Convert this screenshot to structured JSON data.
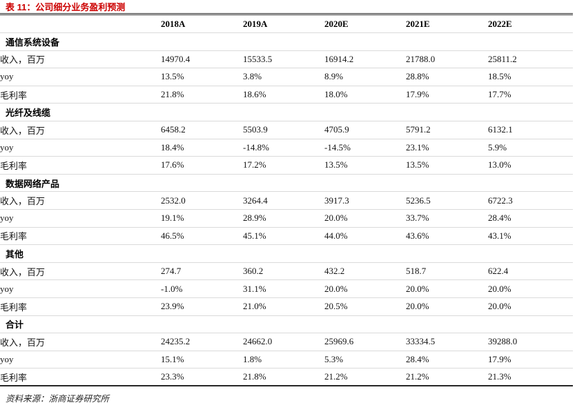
{
  "title": "表 11：公司细分业务盈利预测",
  "source": "资料来源：浙商证券研究所",
  "colors": {
    "title_red": "#cc0000",
    "heavy_rule": "#262626",
    "light_rule": "#dadada",
    "background": "#ffffff"
  },
  "table": {
    "columns": [
      "",
      "2018A",
      "2019A",
      "2020E",
      "2021E",
      "2022E"
    ],
    "sections": [
      {
        "name": "通信系统设备",
        "rows": [
          {
            "label": "收入，百万",
            "values": [
              "14970.4",
              "15533.5",
              "16914.2",
              "21788.0",
              "25811.2"
            ]
          },
          {
            "label": "yoy",
            "values": [
              "13.5%",
              "3.8%",
              "8.9%",
              "28.8%",
              "18.5%"
            ]
          },
          {
            "label": "毛利率",
            "values": [
              "21.8%",
              "18.6%",
              "18.0%",
              "17.9%",
              "17.7%"
            ]
          }
        ]
      },
      {
        "name": "光纤及线缆",
        "rows": [
          {
            "label": "收入，百万",
            "values": [
              "6458.2",
              "5503.9",
              "4705.9",
              "5791.2",
              "6132.1"
            ]
          },
          {
            "label": "yoy",
            "values": [
              "18.4%",
              "-14.8%",
              "-14.5%",
              "23.1%",
              "5.9%"
            ]
          },
          {
            "label": "毛利率",
            "values": [
              "17.6%",
              "17.2%",
              "13.5%",
              "13.5%",
              "13.0%"
            ]
          }
        ]
      },
      {
        "name": "数据网络产品",
        "rows": [
          {
            "label": "收入，百万",
            "values": [
              "2532.0",
              "3264.4",
              "3917.3",
              "5236.5",
              "6722.3"
            ]
          },
          {
            "label": "yoy",
            "values": [
              "19.1%",
              "28.9%",
              "20.0%",
              "33.7%",
              "28.4%"
            ]
          },
          {
            "label": "毛利率",
            "values": [
              "46.5%",
              "45.1%",
              "44.0%",
              "43.6%",
              "43.1%"
            ]
          }
        ]
      },
      {
        "name": "其他",
        "rows": [
          {
            "label": "收入，百万",
            "values": [
              "274.7",
              "360.2",
              "432.2",
              "518.7",
              "622.4"
            ]
          },
          {
            "label": "yoy",
            "values": [
              "-1.0%",
              "31.1%",
              "20.0%",
              "20.0%",
              "20.0%"
            ]
          },
          {
            "label": "毛利率",
            "values": [
              "23.9%",
              "21.0%",
              "20.5%",
              "20.0%",
              "20.0%"
            ]
          }
        ]
      },
      {
        "name": "合计",
        "rows": [
          {
            "label": "收入，百万",
            "values": [
              "24235.2",
              "24662.0",
              "25969.6",
              "33334.5",
              "39288.0"
            ]
          },
          {
            "label": "yoy",
            "values": [
              "15.1%",
              "1.8%",
              "5.3%",
              "28.4%",
              "17.9%"
            ]
          },
          {
            "label": "毛利率",
            "values": [
              "23.3%",
              "21.8%",
              "21.2%",
              "21.2%",
              "21.3%"
            ]
          }
        ]
      }
    ]
  }
}
